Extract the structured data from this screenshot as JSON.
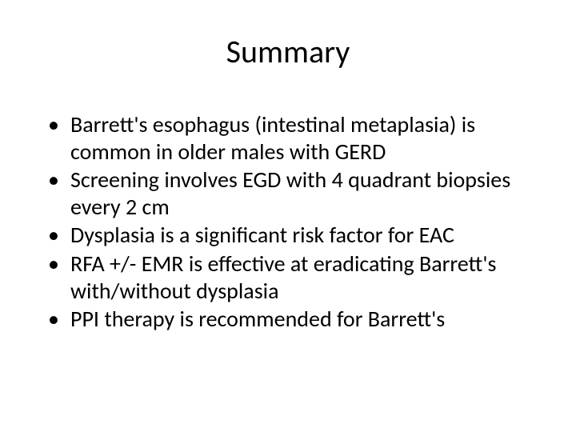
{
  "slide": {
    "title": "Summary",
    "title_fontsize": 40,
    "body_fontsize": 28,
    "background_color": "#ffffff",
    "text_color": "#000000",
    "font_family": "Calibri",
    "bullets": [
      "Barrett's esophagus (intestinal metaplasia) is common in older males with GERD",
      "Screening involves EGD with 4 quadrant biopsies every 2 cm",
      "Dysplasia is a significant risk factor for EAC",
      "RFA +/- EMR is effective at eradicating Barrett's with/without dysplasia",
      "PPI therapy is recommended for Barrett's"
    ]
  }
}
